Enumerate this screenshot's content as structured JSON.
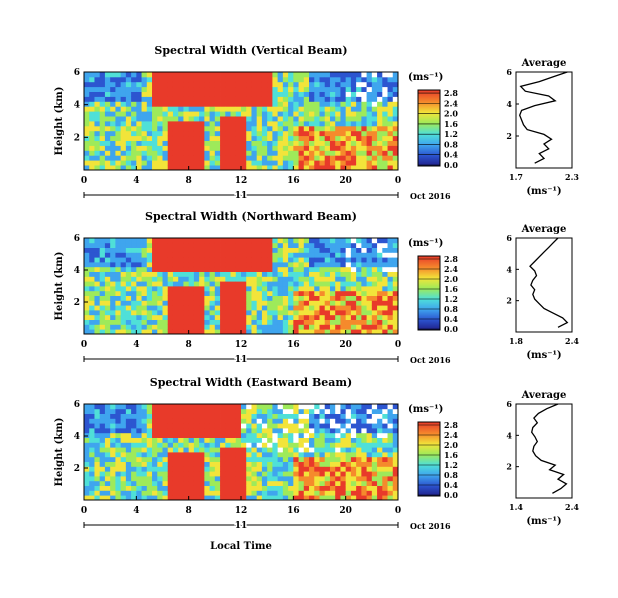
{
  "chart_data": [
    {
      "type": "heatmap",
      "title": "Spectral Width (Vertical Beam)",
      "ylabel": "Height (km)",
      "x_ticks": [
        "0",
        "4",
        "8",
        "12",
        "16",
        "20",
        "0"
      ],
      "y_ticks": [
        "2",
        "4",
        "6"
      ],
      "xlim": [
        0,
        24
      ],
      "ylim": [
        0,
        6
      ],
      "date_day": "11",
      "date_month": "Oct 2016",
      "colorbar_unit": "(ms⁻¹)",
      "colorbar_ticks": [
        "0.0",
        "0.4",
        "0.8",
        "1.2",
        "1.6",
        "2.0",
        "2.4",
        "2.8"
      ],
      "average": {
        "title": "Average",
        "xlabel": "(ms⁻¹)",
        "x_ticks": [
          "1.7",
          "2.3"
        ],
        "xlim": [
          1.7,
          2.3
        ],
        "y_ticks": [
          "2",
          "4",
          "6"
        ],
        "ylim": [
          0,
          6
        ],
        "heights": [
          0.3,
          0.6,
          0.9,
          1.2,
          1.5,
          1.8,
          2.1,
          2.4,
          2.7,
          3.0,
          3.3,
          3.6,
          3.9,
          4.2,
          4.5,
          4.8,
          5.1,
          5.4,
          5.7,
          6.0
        ],
        "values": [
          1.9,
          2.0,
          1.95,
          2.05,
          2.0,
          2.08,
          2.0,
          1.82,
          1.78,
          1.76,
          1.74,
          1.76,
          1.9,
          2.12,
          2.05,
          1.8,
          1.75,
          1.95,
          2.1,
          2.25
        ]
      }
    },
    {
      "type": "heatmap",
      "title": "Spectral Width (Northward Beam)",
      "ylabel": "Height (km)",
      "x_ticks": [
        "0",
        "4",
        "8",
        "12",
        "16",
        "20",
        "0"
      ],
      "y_ticks": [
        "2",
        "4",
        "6"
      ],
      "xlim": [
        0,
        24
      ],
      "ylim": [
        0,
        6
      ],
      "date_day": "11",
      "date_month": "Oct 2016",
      "colorbar_unit": "(ms⁻¹)",
      "colorbar_ticks": [
        "0.0",
        "0.4",
        "0.8",
        "1.2",
        "1.6",
        "2.0",
        "2.4",
        "2.8"
      ],
      "average": {
        "title": "Average",
        "xlabel": "(ms⁻¹)",
        "x_ticks": [
          "1.8",
          "2.4"
        ],
        "xlim": [
          1.8,
          2.4
        ],
        "y_ticks": [
          "2",
          "4",
          "6"
        ],
        "ylim": [
          0,
          6
        ],
        "heights": [
          0.3,
          0.6,
          0.9,
          1.2,
          1.5,
          1.8,
          2.1,
          2.4,
          2.7,
          3.0,
          3.3,
          3.6,
          3.9,
          4.2,
          4.5,
          4.8,
          5.1,
          5.4,
          5.7,
          6.0
        ],
        "values": [
          2.25,
          2.35,
          2.3,
          2.2,
          2.1,
          2.05,
          2.0,
          1.98,
          2.0,
          1.96,
          1.98,
          2.02,
          2.0,
          1.95,
          2.0,
          2.05,
          2.1,
          2.15,
          2.2,
          2.25
        ]
      }
    },
    {
      "type": "heatmap",
      "title": "Spectral Width (Eastward Beam)",
      "ylabel": "Height (km)",
      "xlabel": "Local Time",
      "x_ticks": [
        "0",
        "4",
        "8",
        "12",
        "16",
        "20",
        "0"
      ],
      "y_ticks": [
        "2",
        "4",
        "6"
      ],
      "xlim": [
        0,
        24
      ],
      "ylim": [
        0,
        6
      ],
      "date_day": "11",
      "date_month": "Oct 2016",
      "colorbar_unit": "(ms⁻¹)",
      "colorbar_ticks": [
        "0.0",
        "0.4",
        "0.8",
        "1.2",
        "1.6",
        "2.0",
        "2.4",
        "2.8"
      ],
      "average": {
        "title": "Average",
        "xlabel": "(ms⁻¹)",
        "x_ticks": [
          "1.4",
          "2.4"
        ],
        "xlim": [
          1.4,
          2.4
        ],
        "y_ticks": [
          "2",
          "4",
          "6"
        ],
        "ylim": [
          0,
          6
        ],
        "heights": [
          0.3,
          0.6,
          0.9,
          1.2,
          1.5,
          1.8,
          2.1,
          2.4,
          2.7,
          3.0,
          3.3,
          3.6,
          3.9,
          4.2,
          4.5,
          4.8,
          5.1,
          5.4,
          5.7,
          6.0
        ],
        "values": [
          2.05,
          2.2,
          2.3,
          2.15,
          2.25,
          2.0,
          2.1,
          1.85,
          1.75,
          1.7,
          1.72,
          1.78,
          1.74,
          1.68,
          1.7,
          1.78,
          1.72,
          1.8,
          1.95,
          2.15
        ]
      }
    }
  ]
}
